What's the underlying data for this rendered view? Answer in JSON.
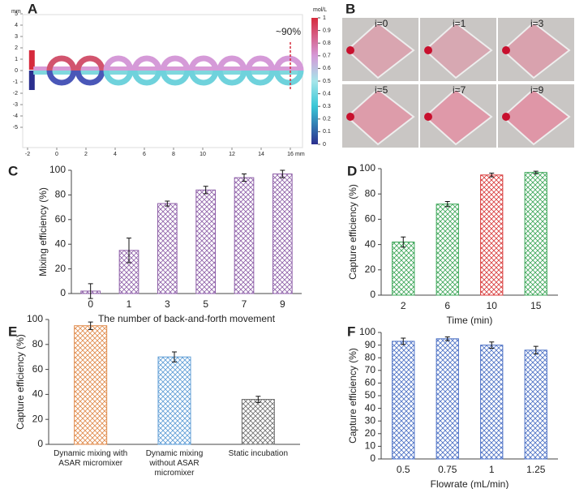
{
  "chart_data": [
    {
      "type": "field",
      "panel": "A",
      "xlim": [
        -2.2,
        17
      ],
      "xticks": [
        -2,
        0,
        2,
        4,
        6,
        8,
        10,
        12,
        14,
        16
      ],
      "ylim": [
        -5.5,
        5.5
      ],
      "yticks": [
        5,
        4,
        3,
        2,
        1,
        0,
        -1,
        -2,
        -3,
        -4,
        -5
      ],
      "x_unit": "mm",
      "y_unit": "mm",
      "colorbar_label": "mol/L",
      "colorbar_lim": [
        0,
        1
      ],
      "colorbar_ticks": [
        0,
        0.1,
        0.2,
        0.3,
        0.4,
        0.5,
        0.6,
        0.7,
        0.8,
        0.9,
        1
      ],
      "annotation": "~90%"
    },
    {
      "type": "bar",
      "panel": "C",
      "ylabel": "Mixing efficiency (%)",
      "xlabel": "The number of back-and-forth movement",
      "categories": [
        "0",
        "1",
        "3",
        "5",
        "7",
        "9"
      ],
      "values": [
        2,
        35,
        73,
        84,
        94,
        97
      ],
      "errors": [
        6,
        10,
        2,
        3,
        3,
        3
      ],
      "colors": [
        "#8e5fa8",
        "#8e5fa8",
        "#8e5fa8",
        "#8e5fa8",
        "#8e5fa8",
        "#8e5fa8"
      ],
      "ylim": [
        0,
        100
      ],
      "yticks": [
        0,
        20,
        40,
        60,
        80,
        100
      ]
    },
    {
      "type": "bar",
      "panel": "D",
      "ylabel": "Capture efficiency (%)",
      "xlabel": "Time (min)",
      "categories": [
        "2",
        "6",
        "10",
        "15"
      ],
      "values": [
        42,
        72,
        95,
        97
      ],
      "errors": [
        4,
        2,
        1.5,
        1
      ],
      "colors": [
        "#3aa556",
        "#3aa556",
        "#d83a3a",
        "#3aa556"
      ],
      "ylim": [
        0,
        100
      ],
      "yticks": [
        0,
        20,
        40,
        60,
        80,
        100
      ]
    },
    {
      "type": "bar",
      "panel": "E",
      "ylabel": "Capture efficiency (%)",
      "categories": [
        "Dynamic mixing with ASAR micromixer",
        "Dynamic mixing without ASAR micromixer",
        "Static incubation"
      ],
      "values": [
        95,
        70,
        36
      ],
      "errors": [
        3,
        4,
        2.5
      ],
      "colors": [
        "#e08a4a",
        "#5b9bd5",
        "#6d6d6d"
      ],
      "ylim": [
        0,
        100
      ],
      "yticks": [
        0,
        20,
        40,
        60,
        80,
        100
      ]
    },
    {
      "type": "bar",
      "panel": "F",
      "ylabel": "Capture efficiency (%)",
      "xlabel": "Flowrate (mL/min)",
      "categories": [
        "0.5",
        "0.75",
        "1",
        "1.25"
      ],
      "values": [
        93,
        95,
        90,
        86
      ],
      "errors": [
        2.5,
        1.5,
        2.5,
        3
      ],
      "colors": [
        "#4a6fc4",
        "#4a6fc4",
        "#4a6fc4",
        "#4a6fc4"
      ],
      "ylim": [
        0,
        100
      ],
      "yticks": [
        0,
        10,
        20,
        30,
        40,
        50,
        60,
        70,
        80,
        90,
        100
      ]
    }
  ],
  "photos": {
    "panel": "B",
    "labels": [
      "i=0",
      "i=1",
      "i=3",
      "i=5",
      "i=7",
      "i=9"
    ]
  }
}
